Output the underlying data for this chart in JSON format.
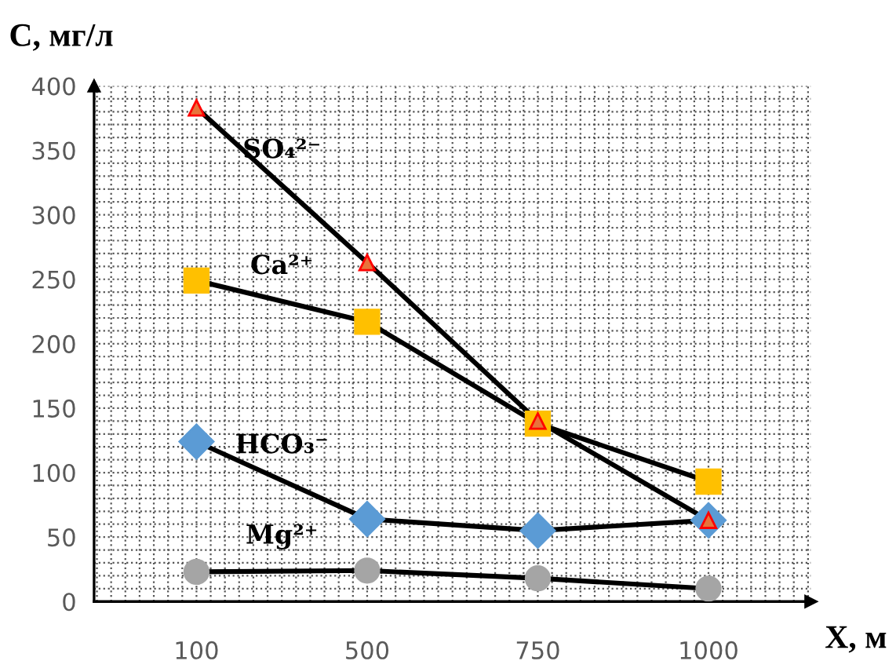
{
  "chart_data": {
    "type": "line",
    "xlabel": "X, м",
    "ylabel": "C, мг/л",
    "categories": [
      "100",
      "500",
      "750",
      "1000"
    ],
    "ylim": [
      0,
      400
    ],
    "yticks": [
      0,
      50,
      100,
      150,
      200,
      250,
      300,
      350,
      400
    ],
    "grid": true,
    "legend": false,
    "series": [
      {
        "name": "SO₄²⁻",
        "color": "#e8743b",
        "marker": "triangle",
        "values": [
          383,
          263,
          140,
          63
        ]
      },
      {
        "name": "Ca²⁺",
        "color": "#ffc000",
        "marker": "square",
        "values": [
          249,
          217,
          138,
          93
        ]
      },
      {
        "name": "HCO₃⁻",
        "color": "#5b9bd5",
        "marker": "diamond",
        "values": [
          124,
          64,
          55,
          63
        ]
      },
      {
        "name": "Mg²⁺",
        "color": "#a5a5a5",
        "marker": "circle",
        "values": [
          23,
          24,
          18,
          10
        ]
      }
    ]
  }
}
